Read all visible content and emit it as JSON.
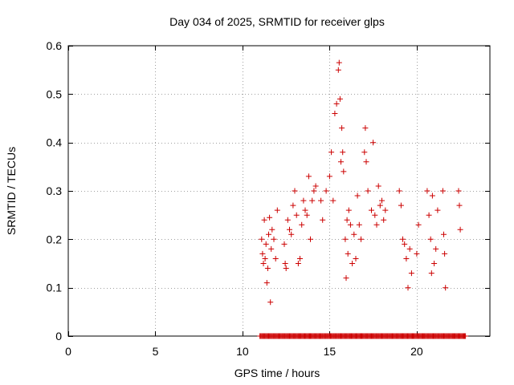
{
  "chart_data": {
    "type": "scatter",
    "title": "Day 034 of 2025, SRMTID for receiver glps",
    "xlabel": "GPS time / hours",
    "ylabel": "SRMTID / TECUs",
    "xlim": [
      0,
      24.2
    ],
    "ylim": [
      0,
      0.6
    ],
    "x_ticks": [
      0,
      5,
      10,
      15,
      20
    ],
    "y_ticks": [
      0,
      0.1,
      0.2,
      0.3,
      0.4,
      0.5,
      0.6
    ],
    "x_tick_labels": [
      "0",
      "5",
      "10",
      "15",
      "20"
    ],
    "y_tick_labels": [
      "0",
      "0.1",
      "0.2",
      "0.3",
      "0.4",
      "0.5",
      "0.6"
    ],
    "grid": true,
    "marker": "+",
    "color": "#cc0000",
    "baseline_run": {
      "y": 0,
      "x_start": 11.0,
      "x_end": 22.8,
      "step": 0.05
    },
    "series": [
      {
        "name": "SRMTID",
        "points": [
          [
            11.1,
            0.2
          ],
          [
            11.15,
            0.17
          ],
          [
            11.2,
            0.15
          ],
          [
            11.25,
            0.24
          ],
          [
            11.3,
            0.16
          ],
          [
            11.35,
            0.19
          ],
          [
            11.4,
            0.11
          ],
          [
            11.45,
            0.14
          ],
          [
            11.5,
            0.21
          ],
          [
            11.55,
            0.245
          ],
          [
            11.6,
            0.07
          ],
          [
            11.65,
            0.18
          ],
          [
            11.7,
            0.22
          ],
          [
            11.8,
            0.2
          ],
          [
            11.9,
            0.16
          ],
          [
            12.0,
            0.26
          ],
          [
            12.4,
            0.19
          ],
          [
            12.45,
            0.15
          ],
          [
            12.5,
            0.14
          ],
          [
            12.6,
            0.24
          ],
          [
            12.7,
            0.22
          ],
          [
            12.8,
            0.21
          ],
          [
            12.9,
            0.27
          ],
          [
            13.0,
            0.3
          ],
          [
            13.1,
            0.25
          ],
          [
            13.2,
            0.15
          ],
          [
            13.3,
            0.16
          ],
          [
            13.4,
            0.23
          ],
          [
            13.5,
            0.28
          ],
          [
            13.6,
            0.26
          ],
          [
            13.7,
            0.25
          ],
          [
            13.8,
            0.33
          ],
          [
            13.9,
            0.2
          ],
          [
            14.0,
            0.28
          ],
          [
            14.1,
            0.3
          ],
          [
            14.2,
            0.31
          ],
          [
            14.5,
            0.28
          ],
          [
            14.6,
            0.24
          ],
          [
            14.8,
            0.3
          ],
          [
            15.0,
            0.33
          ],
          [
            15.1,
            0.38
          ],
          [
            15.2,
            0.28
          ],
          [
            15.3,
            0.46
          ],
          [
            15.4,
            0.48
          ],
          [
            15.5,
            0.55
          ],
          [
            15.55,
            0.565
          ],
          [
            15.6,
            0.49
          ],
          [
            15.65,
            0.36
          ],
          [
            15.7,
            0.43
          ],
          [
            15.75,
            0.38
          ],
          [
            15.8,
            0.34
          ],
          [
            15.9,
            0.2
          ],
          [
            15.95,
            0.12
          ],
          [
            16.0,
            0.24
          ],
          [
            16.05,
            0.17
          ],
          [
            16.1,
            0.26
          ],
          [
            16.2,
            0.23
          ],
          [
            16.3,
            0.15
          ],
          [
            16.4,
            0.21
          ],
          [
            16.5,
            0.16
          ],
          [
            16.6,
            0.29
          ],
          [
            16.7,
            0.23
          ],
          [
            16.8,
            0.2
          ],
          [
            17.0,
            0.38
          ],
          [
            17.05,
            0.43
          ],
          [
            17.1,
            0.36
          ],
          [
            17.2,
            0.3
          ],
          [
            17.4,
            0.26
          ],
          [
            17.5,
            0.4
          ],
          [
            17.6,
            0.25
          ],
          [
            17.7,
            0.23
          ],
          [
            17.8,
            0.31
          ],
          [
            17.9,
            0.27
          ],
          [
            18.0,
            0.28
          ],
          [
            18.1,
            0.24
          ],
          [
            18.2,
            0.26
          ],
          [
            19.0,
            0.3
          ],
          [
            19.1,
            0.27
          ],
          [
            19.2,
            0.2
          ],
          [
            19.3,
            0.19
          ],
          [
            19.4,
            0.16
          ],
          [
            19.5,
            0.1
          ],
          [
            19.6,
            0.18
          ],
          [
            19.7,
            0.13
          ],
          [
            20.0,
            0.17
          ],
          [
            20.1,
            0.23
          ],
          [
            20.6,
            0.3
          ],
          [
            20.7,
            0.25
          ],
          [
            20.8,
            0.2
          ],
          [
            20.85,
            0.13
          ],
          [
            20.9,
            0.29
          ],
          [
            21.0,
            0.15
          ],
          [
            21.1,
            0.18
          ],
          [
            21.2,
            0.26
          ],
          [
            21.5,
            0.3
          ],
          [
            21.55,
            0.21
          ],
          [
            21.6,
            0.17
          ],
          [
            21.65,
            0.1
          ],
          [
            22.4,
            0.3
          ],
          [
            22.45,
            0.27
          ],
          [
            22.5,
            0.22
          ]
        ]
      }
    ]
  }
}
